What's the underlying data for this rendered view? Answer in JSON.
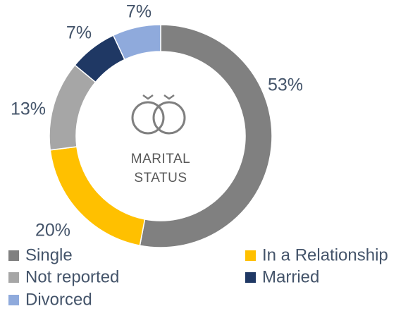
{
  "chart_data": {
    "type": "donut",
    "center_label": "MARITAL STATUS",
    "categories": [
      "Single",
      "In a Relationship",
      "Not reported",
      "Married",
      "Divorced"
    ],
    "values": [
      53,
      20,
      13,
      7,
      7
    ],
    "value_labels": [
      "53%",
      "20%",
      "13%",
      "7%",
      "7%"
    ],
    "colors": [
      "#808080",
      "#ffc000",
      "#a6a6a6",
      "#1f3864",
      "#8faadc"
    ],
    "legend": "bottom"
  }
}
